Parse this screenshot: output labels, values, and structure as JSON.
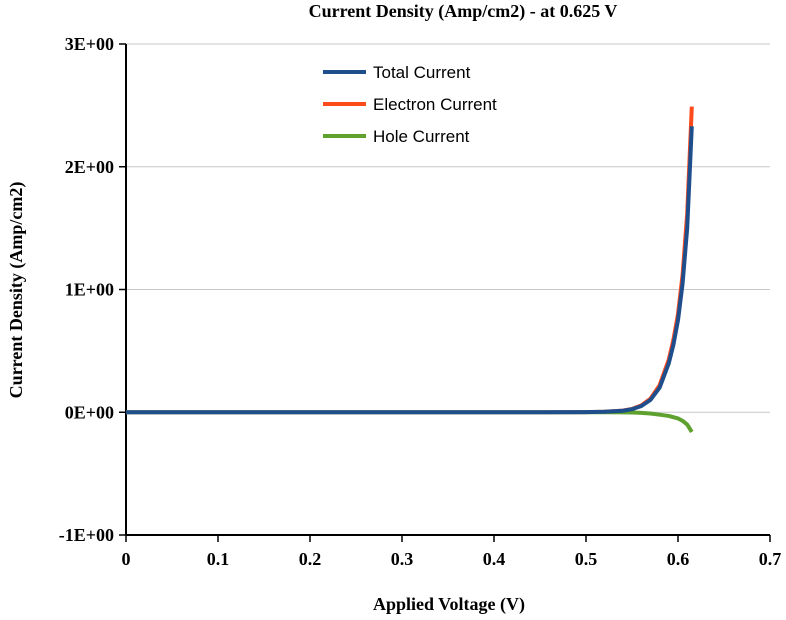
{
  "chart_data": {
    "type": "line",
    "title": "Current Density (Amp/cm2) - at 0.625 V",
    "xlabel": "Applied Voltage (V)",
    "ylabel": "Current Density (Amp/cm2)",
    "xlim": [
      0,
      0.7
    ],
    "ylim": [
      -1,
      3
    ],
    "x_ticks": [
      0,
      0.1,
      0.2,
      0.3,
      0.4,
      0.5,
      0.6,
      0.7
    ],
    "x_tick_labels": [
      "0",
      "0.1",
      "0.2",
      "0.3",
      "0.4",
      "0.5",
      "0.6",
      "0.7"
    ],
    "y_ticks": [
      3,
      2,
      1,
      0,
      -1
    ],
    "y_tick_labels": [
      "3E+00",
      "2E+00",
      "1E+00",
      "0E+00",
      "-1E+00"
    ],
    "grid": "horizontal",
    "legend_position": "top-center",
    "series": [
      {
        "name": "Total Current",
        "color": "#1f4e8c",
        "x": [
          0,
          0.1,
          0.2,
          0.3,
          0.4,
          0.45,
          0.5,
          0.52,
          0.54,
          0.55,
          0.56,
          0.57,
          0.58,
          0.59,
          0.595,
          0.6,
          0.605,
          0.61,
          0.615
        ],
        "y": [
          0,
          0,
          0,
          0,
          0,
          0,
          0.001,
          0.004,
          0.012,
          0.025,
          0.05,
          0.1,
          0.2,
          0.4,
          0.55,
          0.75,
          1.05,
          1.5,
          2.33
        ]
      },
      {
        "name": "Electron Current",
        "color": "#ff4a1c",
        "x": [
          0,
          0.1,
          0.2,
          0.3,
          0.4,
          0.45,
          0.5,
          0.52,
          0.54,
          0.55,
          0.56,
          0.57,
          0.58,
          0.59,
          0.595,
          0.6,
          0.605,
          0.61,
          0.615
        ],
        "y": [
          0,
          0,
          0,
          0,
          0,
          0,
          0.001,
          0.004,
          0.013,
          0.027,
          0.055,
          0.11,
          0.22,
          0.43,
          0.59,
          0.8,
          1.12,
          1.62,
          2.49
        ]
      },
      {
        "name": "Hole Current",
        "color": "#5fa12e",
        "x": [
          0,
          0.1,
          0.2,
          0.3,
          0.4,
          0.45,
          0.5,
          0.52,
          0.54,
          0.55,
          0.56,
          0.57,
          0.58,
          0.59,
          0.595,
          0.6,
          0.605,
          0.61,
          0.615
        ],
        "y": [
          0,
          0,
          0,
          0,
          0,
          0,
          0,
          0,
          -0.001,
          -0.002,
          -0.005,
          -0.01,
          -0.02,
          -0.03,
          -0.04,
          -0.05,
          -0.07,
          -0.1,
          -0.16
        ]
      }
    ]
  }
}
